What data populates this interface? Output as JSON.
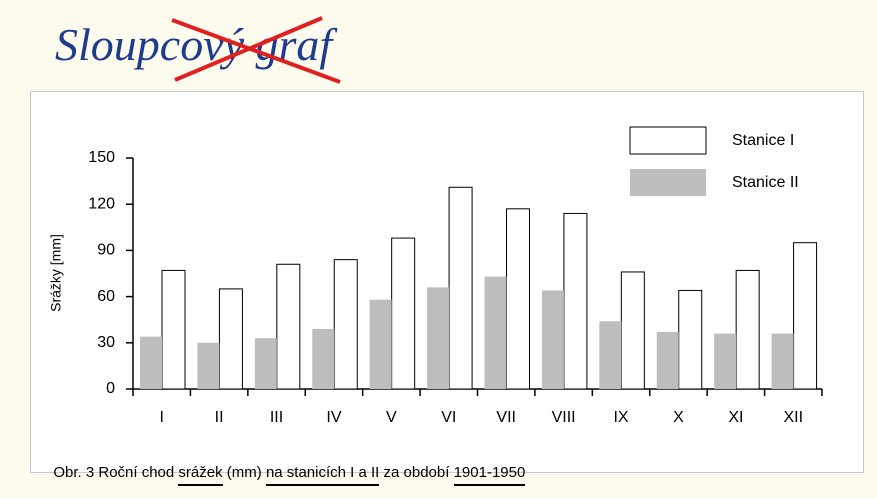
{
  "title": "Sloupcový graf",
  "caption": [
    "Obr. 3 Roční chod ",
    "srážek",
    " (mm) ",
    "na stanicích I a II",
    " za období ",
    "1901-1950"
  ],
  "chart_data": {
    "type": "bar",
    "ylabel": "Srážky [mm]",
    "categories": [
      "I",
      "II",
      "III",
      "IV",
      "V",
      "VI",
      "VII",
      "VIII",
      "IX",
      "X",
      "XI",
      "XII"
    ],
    "series": [
      {
        "name": "Stanice I",
        "color": "#ffffff",
        "values": [
          77,
          65,
          81,
          84,
          98,
          131,
          117,
          114,
          76,
          64,
          77,
          95
        ]
      },
      {
        "name": "Stanice II",
        "color": "#bdbdbd",
        "values": [
          34,
          30,
          33,
          39,
          58,
          66,
          73,
          64,
          44,
          37,
          36,
          36
        ]
      }
    ],
    "ylim": [
      0,
      150
    ],
    "yticks": [
      0,
      30,
      60,
      90,
      120,
      150
    ],
    "legend": "upper right"
  }
}
